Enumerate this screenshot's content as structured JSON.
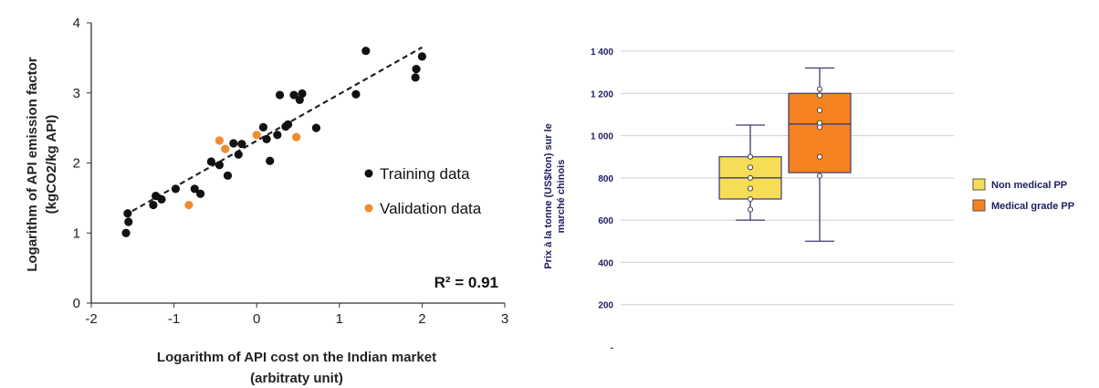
{
  "chart_data": [
    {
      "type": "scatter",
      "title": "",
      "xlabel_lines": [
        "Logarithm of API cost on the Indian market",
        "(arbitraty unit)"
      ],
      "ylabel_lines": [
        "Logarithm of API emission factor",
        "(kgCO2/kg API)"
      ],
      "xlim": [
        -2,
        3
      ],
      "ylim": [
        0,
        4
      ],
      "xticks": [
        "-2",
        "-1",
        "0",
        "1",
        "2",
        "3"
      ],
      "yticks": [
        "0",
        "1",
        "2",
        "3",
        "4"
      ],
      "r2_label": "R² = 0.91",
      "trendline": {
        "x": [
          -1.6,
          2.0
        ],
        "y": [
          1.25,
          3.65
        ]
      },
      "legend_position": "right",
      "series": [
        {
          "name": "Training data",
          "color": "#111111",
          "points": [
            [
              -1.58,
              1.0
            ],
            [
              -1.56,
              1.28
            ],
            [
              -1.55,
              1.16
            ],
            [
              -1.25,
              1.4
            ],
            [
              -1.22,
              1.53
            ],
            [
              -1.15,
              1.48
            ],
            [
              -0.98,
              1.63
            ],
            [
              -0.75,
              1.63
            ],
            [
              -0.68,
              1.56
            ],
            [
              -0.55,
              2.02
            ],
            [
              -0.45,
              1.97
            ],
            [
              -0.35,
              1.82
            ],
            [
              -0.28,
              2.28
            ],
            [
              -0.22,
              2.12
            ],
            [
              -0.18,
              2.27
            ],
            [
              0.08,
              2.51
            ],
            [
              0.12,
              2.34
            ],
            [
              0.16,
              2.03
            ],
            [
              0.25,
              2.4
            ],
            [
              0.28,
              2.97
            ],
            [
              0.35,
              2.52
            ],
            [
              0.38,
              2.55
            ],
            [
              0.45,
              2.97
            ],
            [
              0.52,
              2.9
            ],
            [
              0.55,
              2.99
            ],
            [
              0.72,
              2.5
            ],
            [
              1.2,
              2.98
            ],
            [
              1.32,
              3.6
            ],
            [
              1.92,
              3.22
            ],
            [
              1.93,
              3.34
            ],
            [
              2.0,
              3.52
            ]
          ]
        },
        {
          "name": "Validation data",
          "color": "#f28a2e",
          "points": [
            [
              -0.82,
              1.4
            ],
            [
              -0.45,
              2.32
            ],
            [
              -0.38,
              2.2
            ],
            [
              0.0,
              2.4
            ],
            [
              0.48,
              2.37
            ]
          ]
        }
      ]
    },
    {
      "type": "box",
      "ylabel_lines": [
        "Prix à la tonne (US$/ton) sur le",
        "marché chinois"
      ],
      "ylim": [
        0,
        1400
      ],
      "yticks": [
        "-",
        "200",
        "400",
        "600",
        "800",
        "1 000",
        "1 200",
        "1 400"
      ],
      "legend_position": "right",
      "series": [
        {
          "name": "Non medical PP",
          "color": "#f7dc57",
          "whisker_low": 600,
          "q1": 700,
          "median": 800,
          "q3": 900,
          "whisker_high": 1050,
          "points": [
            650,
            700,
            750,
            800,
            850,
            900
          ]
        },
        {
          "name": "Medical grade PP",
          "color": "#f58220",
          "whisker_low": 500,
          "q1": 825,
          "median": 1055,
          "q3": 1200,
          "whisker_high": 1320,
          "points": [
            810,
            900,
            1040,
            1060,
            1120,
            1190,
            1220
          ]
        }
      ]
    }
  ]
}
